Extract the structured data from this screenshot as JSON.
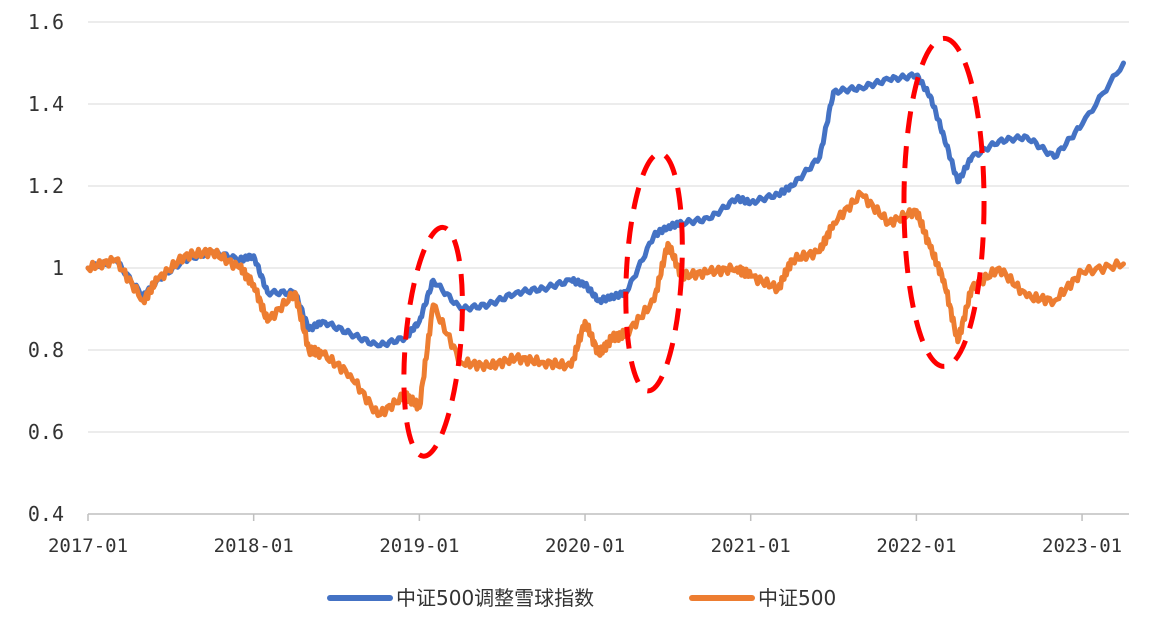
{
  "chart_data": {
    "type": "line",
    "title": "",
    "xlabel": "",
    "ylabel": "",
    "ylim": [
      0.4,
      1.6
    ],
    "yticks": [
      "0.4",
      "0.6",
      "0.8",
      "1",
      "1.2",
      "1.4",
      "1.6"
    ],
    "xticks": [
      "2017-01",
      "2018-01",
      "2019-01",
      "2020-01",
      "2021-01",
      "2022-01",
      "2023-01"
    ],
    "grid": "horizontal",
    "legend_position": "bottom-center",
    "series": [
      {
        "name": "中证500调整雪球指数",
        "color": "#4472C4",
        "x": [
          "2017-01",
          "2017-03",
          "2017-05",
          "2017-06",
          "2017-08",
          "2017-10",
          "2017-12",
          "2018-01",
          "2018-02",
          "2018-04",
          "2018-05",
          "2018-06",
          "2018-08",
          "2018-10",
          "2018-12",
          "2019-01",
          "2019-02",
          "2019-04",
          "2019-06",
          "2019-08",
          "2019-10",
          "2019-12",
          "2020-01",
          "2020-02",
          "2020-03",
          "2020-04",
          "2020-06",
          "2020-07",
          "2020-08",
          "2020-10",
          "2020-12",
          "2021-01",
          "2021-03",
          "2021-04",
          "2021-06",
          "2021-07",
          "2021-09",
          "2021-11",
          "2022-01",
          "2022-02",
          "2022-03",
          "2022-04",
          "2022-05",
          "2022-07",
          "2022-09",
          "2022-11",
          "2023-01",
          "2023-04"
        ],
        "values": [
          1.0,
          1.02,
          0.93,
          0.97,
          1.02,
          1.04,
          1.02,
          1.03,
          0.94,
          0.94,
          0.85,
          0.87,
          0.84,
          0.81,
          0.83,
          0.87,
          0.97,
          0.9,
          0.91,
          0.94,
          0.95,
          0.97,
          0.96,
          0.92,
          0.93,
          0.94,
          1.08,
          1.1,
          1.11,
          1.12,
          1.17,
          1.16,
          1.18,
          1.2,
          1.27,
          1.43,
          1.44,
          1.46,
          1.47,
          1.42,
          1.32,
          1.21,
          1.27,
          1.31,
          1.32,
          1.27,
          1.35,
          1.5
        ]
      },
      {
        "name": "中证500",
        "color": "#ED7D31",
        "x": [
          "2017-01",
          "2017-03",
          "2017-05",
          "2017-06",
          "2017-08",
          "2017-10",
          "2017-12",
          "2018-01",
          "2018-02",
          "2018-04",
          "2018-05",
          "2018-06",
          "2018-08",
          "2018-10",
          "2018-12",
          "2019-01",
          "2019-02",
          "2019-04",
          "2019-06",
          "2019-08",
          "2019-10",
          "2019-12",
          "2020-01",
          "2020-02",
          "2020-03",
          "2020-04",
          "2020-06",
          "2020-07",
          "2020-08",
          "2020-10",
          "2020-12",
          "2021-01",
          "2021-03",
          "2021-04",
          "2021-06",
          "2021-07",
          "2021-09",
          "2021-11",
          "2022-01",
          "2022-02",
          "2022-03",
          "2022-04",
          "2022-05",
          "2022-07",
          "2022-09",
          "2022-11",
          "2023-01",
          "2023-04"
        ],
        "values": [
          1.0,
          1.02,
          0.92,
          0.97,
          1.03,
          1.04,
          1.0,
          0.96,
          0.87,
          0.94,
          0.8,
          0.79,
          0.74,
          0.64,
          0.69,
          0.66,
          0.91,
          0.77,
          0.76,
          0.78,
          0.77,
          0.76,
          0.87,
          0.79,
          0.83,
          0.84,
          0.92,
          1.06,
          0.98,
          0.99,
          1.0,
          0.98,
          0.95,
          1.02,
          1.04,
          1.11,
          1.18,
          1.11,
          1.14,
          1.05,
          0.97,
          0.82,
          0.95,
          1.0,
          0.93,
          0.92,
          0.99,
          1.01
        ]
      }
    ],
    "annotations": [
      {
        "kind": "dashed-ellipse",
        "color": "#FF0000",
        "center_x": "2019-02",
        "center_y": 0.82,
        "rx_months": 2.0,
        "ry": 0.28,
        "rotation_deg": 5
      },
      {
        "kind": "dashed-ellipse",
        "color": "#FF0000",
        "center_x": "2020-06",
        "center_y": 0.99,
        "rx_months": 2.0,
        "ry": 0.29,
        "rotation_deg": 3
      },
      {
        "kind": "dashed-ellipse",
        "color": "#FF0000",
        "center_x": "2022-03",
        "center_y": 1.16,
        "rx_months": 2.9,
        "ry": 0.4,
        "rotation_deg": 0
      }
    ]
  }
}
